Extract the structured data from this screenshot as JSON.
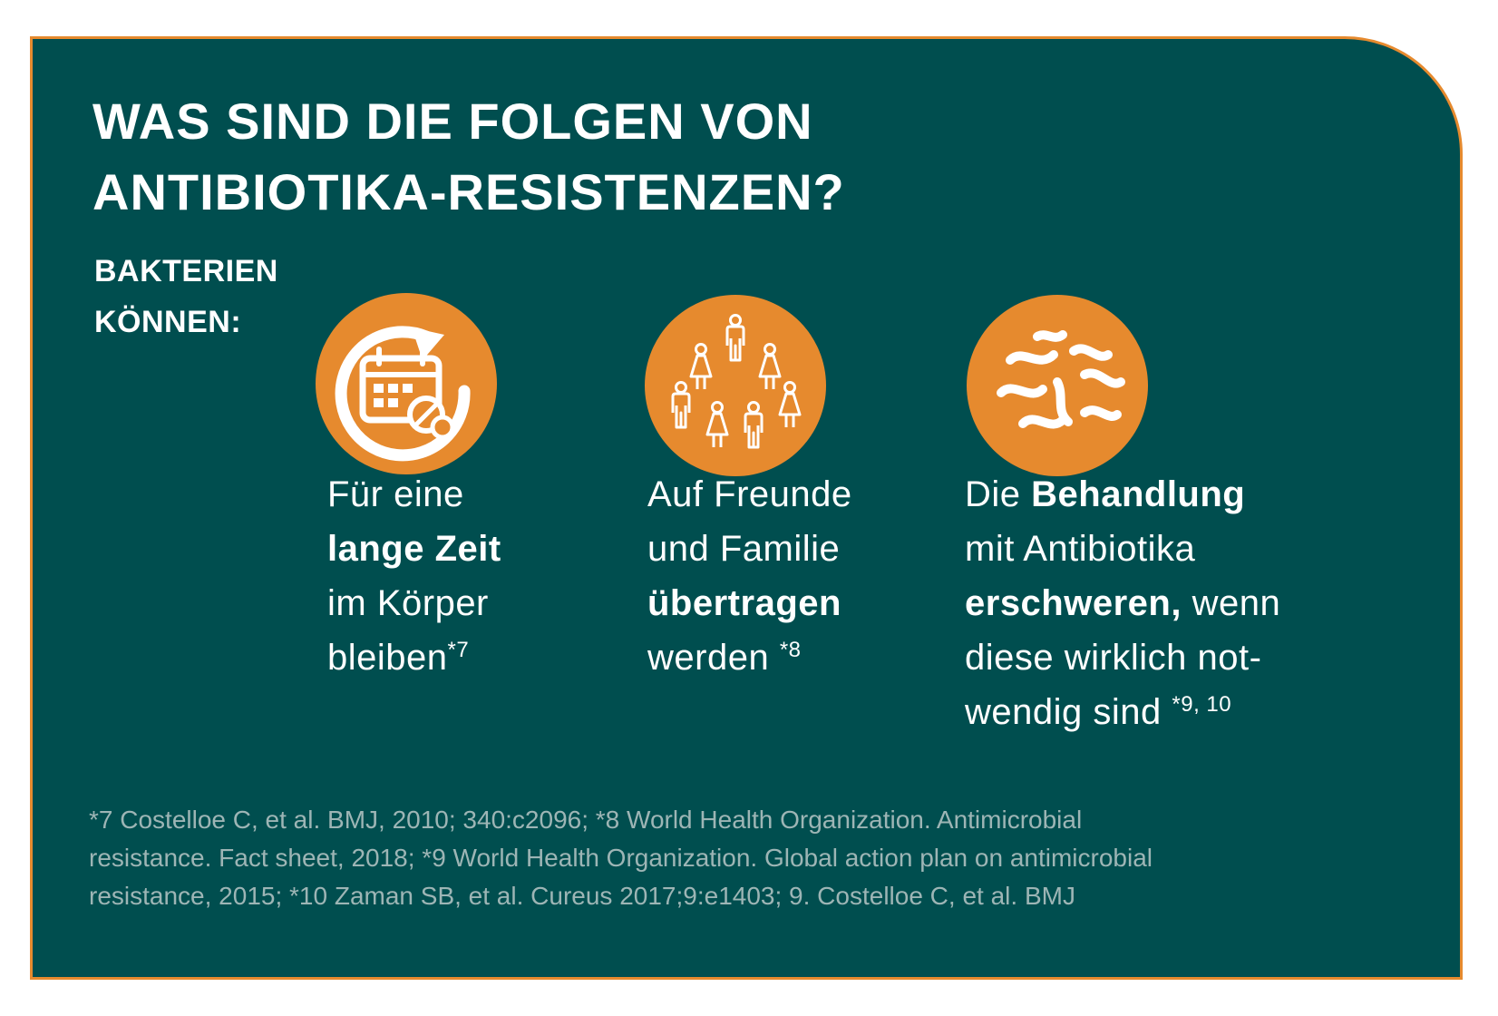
{
  "colors": {
    "background": "#004e4f",
    "accent": "#e68a2e",
    "text": "#ffffff",
    "footnote": "#9db5b5"
  },
  "title": {
    "line1": "WAS SIND DIE FOLGEN VON",
    "line2": "ANTIBIOTIKA-RESISTENZEN?"
  },
  "subtitle": {
    "line1": "BAKTERIEN",
    "line2": "KÖNNEN:"
  },
  "items": [
    {
      "icon": "calendar-pill-cycle-icon",
      "l1": "Für eine",
      "l2b": "lange Zeit",
      "l3": "im Körper",
      "l4": "bleiben",
      "ref": "*7"
    },
    {
      "icon": "people-group-icon",
      "l1": "Auf Freunde",
      "l2": "und Familie",
      "l3b": "übertragen",
      "l4": "werden ",
      "ref": "*8"
    },
    {
      "icon": "bacteria-icon",
      "l1a": "Die ",
      "l1b": "Behandlung",
      "l2": "mit Antibiotika",
      "l3b": "erschweren,",
      "l3": " wenn",
      "l4": "diese wirklich not-",
      "l5": "wendig sind ",
      "ref": "*9, 10"
    }
  ],
  "footnote": {
    "line1": "*7 Costelloe C, et al. BMJ, 2010; 340:c2096; *8 World Health Organization. Antimicrobial",
    "line2": "resistance. Fact sheet, 2018; *9 World Health Organization. Global action plan on antimicrobial",
    "line3": "resistance, 2015;  *10 Zaman SB, et al. Cureus 2017;9:e1403; 9. Costelloe C, et al. BMJ"
  }
}
